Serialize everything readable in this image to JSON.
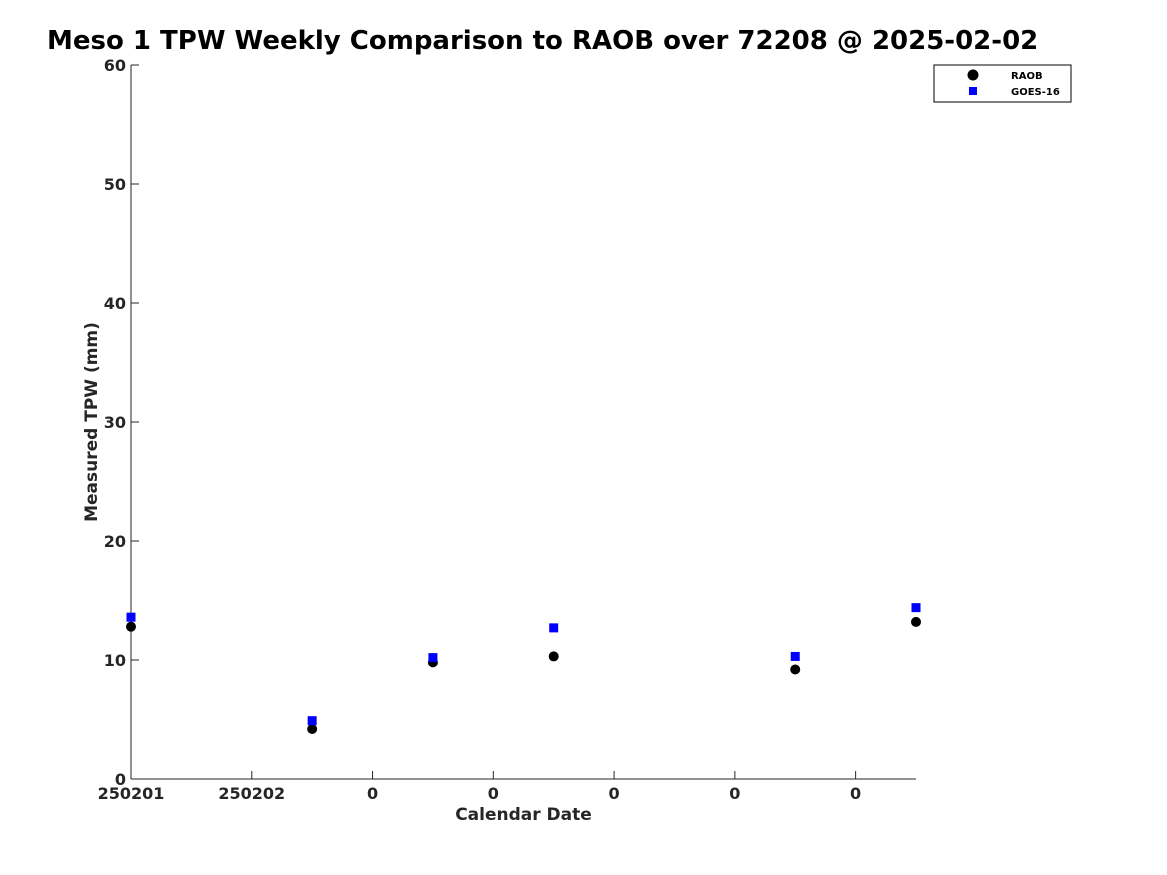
{
  "chart_data": {
    "type": "scatter",
    "title": "Meso 1 TPW Weekly Comparison to RAOB over 72208 @ 2025-02-02",
    "xlabel": "Calendar Date",
    "ylabel": "Measured TPW (mm)",
    "xlim": [
      0,
      6.5
    ],
    "ylim": [
      0,
      60
    ],
    "x_ticks": [
      {
        "x": 0,
        "label": "250201"
      },
      {
        "x": 1,
        "label": "250202"
      },
      {
        "x": 2,
        "label": "0"
      },
      {
        "x": 3,
        "label": "0"
      },
      {
        "x": 4,
        "label": "0"
      },
      {
        "x": 5,
        "label": "0"
      },
      {
        "x": 6,
        "label": "0"
      }
    ],
    "y_ticks": [
      0,
      10,
      20,
      30,
      40,
      50,
      60
    ],
    "grid": false,
    "legend": "top-right",
    "series": [
      {
        "name": "RAOB",
        "marker": "circle",
        "color": "#000000",
        "points": [
          {
            "x": 0.0,
            "y": 12.8
          },
          {
            "x": 1.5,
            "y": 4.2
          },
          {
            "x": 2.5,
            "y": 9.8
          },
          {
            "x": 3.5,
            "y": 10.3
          },
          {
            "x": 5.5,
            "y": 9.2
          },
          {
            "x": 6.5,
            "y": 13.2
          }
        ]
      },
      {
        "name": "GOES-16",
        "marker": "square",
        "color": "#0000ff",
        "points": [
          {
            "x": 0.0,
            "y": 13.6
          },
          {
            "x": 1.5,
            "y": 4.9
          },
          {
            "x": 2.5,
            "y": 10.2
          },
          {
            "x": 3.5,
            "y": 12.7
          },
          {
            "x": 5.5,
            "y": 10.3
          },
          {
            "x": 6.5,
            "y": 14.4
          }
        ]
      }
    ]
  }
}
